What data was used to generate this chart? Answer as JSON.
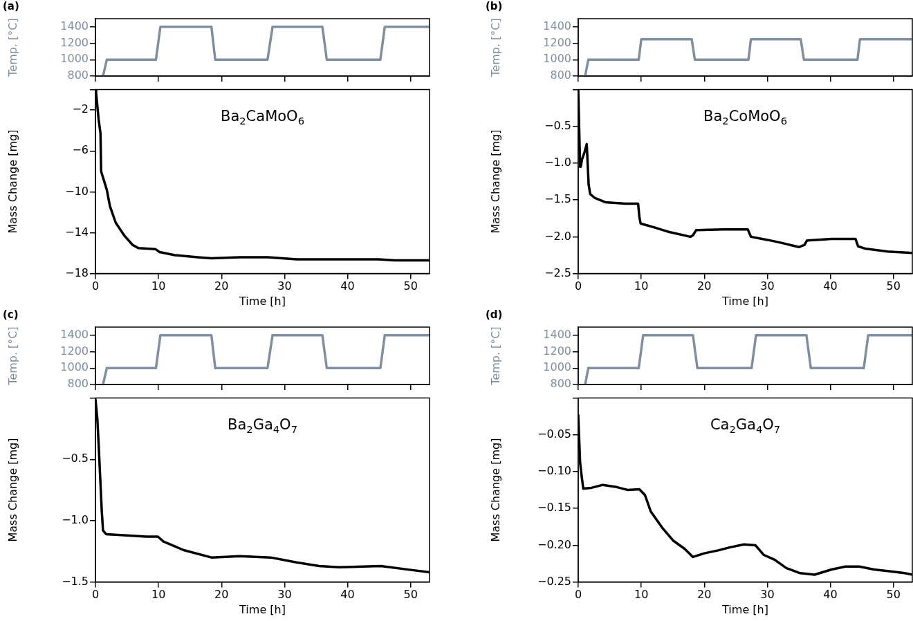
{
  "chart_data": [
    {
      "type": "line",
      "title": "(a)",
      "ylabel": "Temp. [°C]",
      "x": [
        1.2,
        1.8,
        9.6,
        10.3,
        18.4,
        19.0,
        27.3,
        28.1,
        36.0,
        36.7,
        45.2,
        45.9,
        53
      ],
      "series": [
        {
          "color": "#7f8fa1",
          "values": [
            800,
            1000,
            1000,
            1400,
            1400,
            1000,
            1000,
            1400,
            1400,
            1000,
            1000,
            1400,
            1400
          ]
        }
      ],
      "xlim": [
        0,
        53
      ],
      "ylim": [
        800,
        1500
      ],
      "xticks": [
        0,
        10,
        20,
        30,
        40,
        50
      ],
      "yticks": [
        800,
        1000,
        1200,
        1400
      ],
      "tick_labels": "y"
    },
    {
      "type": "line",
      "xlabel": "Time [h]",
      "ylabel": "Mass Change [mg]",
      "annotations": [
        "Ba$_{2}$CaMoO$_{6}$"
      ],
      "x": [
        0,
        0.1,
        0.5,
        0.8,
        0.9,
        1.4,
        1.8,
        2.3,
        3.2,
        4.6,
        5.9,
        6.8,
        9.5,
        10.2,
        12.6,
        16.2,
        18.4,
        22.9,
        27.4,
        31.9,
        34.1,
        38.6,
        44.9,
        47.5,
        53
      ],
      "series": [
        {
          "color": "#000000",
          "values": [
            0,
            -0.3,
            -2.9,
            -4.3,
            -8.0,
            -9.0,
            -9.8,
            -11.4,
            -13.0,
            -14.3,
            -15.2,
            -15.5,
            -15.6,
            -15.9,
            -16.2,
            -16.4,
            -16.5,
            -16.4,
            -16.4,
            -16.6,
            -16.6,
            -16.6,
            -16.6,
            -16.7,
            -16.7
          ]
        }
      ],
      "xlim": [
        0,
        53
      ],
      "ylim": [
        -18,
        0
      ],
      "xticks": [
        0,
        10,
        20,
        30,
        40,
        50
      ],
      "yticks": [
        {
          "value": 0,
          "label": null
        },
        {
          "value": -2,
          "label": "−2"
        },
        {
          "value": -6,
          "label": "−6"
        },
        {
          "value": -10,
          "label": "−10"
        },
        {
          "value": -14,
          "label": "−14"
        },
        {
          "value": -18,
          "label": "−18"
        }
      ]
    },
    {
      "type": "line",
      "title": "(b)",
      "ylabel": "Temp. [°C]",
      "x": [
        1.1,
        1.6,
        9.6,
        10.0,
        18.0,
        18.5,
        27.0,
        27.4,
        35.3,
        35.8,
        44.3,
        44.7,
        53
      ],
      "series": [
        {
          "color": "#7f8fa1",
          "values": [
            800,
            1000,
            1000,
            1250,
            1250,
            1000,
            1000,
            1250,
            1250,
            1000,
            1000,
            1250,
            1250
          ]
        }
      ],
      "xlim": [
        0,
        53
      ],
      "ylim": [
        800,
        1500
      ],
      "xticks": [
        0,
        10,
        20,
        30,
        40,
        50
      ],
      "yticks": [
        800,
        1000,
        1200,
        1400
      ],
      "tick_labels": "y"
    },
    {
      "type": "line",
      "xlabel": "Time [h]",
      "ylabel": "Mass Change [mg]",
      "annotations": [
        "Ba$_{2}$CoMoO$_{6}$"
      ],
      "x": [
        0,
        0.3,
        0.4,
        0.6,
        1.0,
        1.35,
        1.65,
        1.9,
        2.6,
        4.3,
        7.5,
        9.5,
        9.7,
        9.9,
        12,
        14.2,
        17.8,
        18.2,
        18.7,
        23.1,
        26.9,
        27.4,
        29.9,
        32.1,
        35,
        35.9,
        36.3,
        40.2,
        44,
        44.4,
        45.5,
        49.1,
        53
      ],
      "series": [
        {
          "color": "#000000",
          "values": [
            0,
            -1.05,
            -1.05,
            -0.95,
            -0.85,
            -0.74,
            -1.29,
            -1.42,
            -1.47,
            -1.53,
            -1.55,
            -1.55,
            -1.73,
            -1.82,
            -1.87,
            -1.93,
            -2.0,
            -1.98,
            -1.91,
            -1.9,
            -1.9,
            -2.0,
            -2.04,
            -2.08,
            -2.14,
            -2.11,
            -2.05,
            -2.03,
            -2.03,
            -2.13,
            -2.16,
            -2.2,
            -2.22
          ]
        }
      ],
      "xlim": [
        0,
        53
      ],
      "ylim": [
        -2.5,
        0
      ],
      "xticks": [
        0,
        10,
        20,
        30,
        40,
        50
      ],
      "yticks": [
        {
          "value": 0,
          "label": null
        },
        {
          "value": -0.5,
          "label": "−0.5"
        },
        {
          "value": -1,
          "label": "−1.0"
        },
        {
          "value": -1.5,
          "label": "−1.5"
        },
        {
          "value": -2,
          "label": "−2.0"
        },
        {
          "value": -2.5,
          "label": "−2.5"
        }
      ]
    },
    {
      "type": "line",
      "title": "(c)",
      "ylabel": "Temp. [°C]",
      "x": [
        1.2,
        1.8,
        9.6,
        10.3,
        18.4,
        19.0,
        27.3,
        28.1,
        36.0,
        36.7,
        45.2,
        45.9,
        53
      ],
      "series": [
        {
          "color": "#7f8fa1",
          "values": [
            800,
            1000,
            1000,
            1400,
            1400,
            1000,
            1000,
            1400,
            1400,
            1000,
            1000,
            1400,
            1400
          ]
        }
      ],
      "xlim": [
        0,
        53
      ],
      "ylim": [
        800,
        1500
      ],
      "xticks": [
        0,
        10,
        20,
        30,
        40,
        50
      ],
      "yticks": [
        800,
        1000,
        1200,
        1400
      ],
      "tick_labels": "y"
    },
    {
      "type": "line",
      "xlabel": "Time [h]",
      "ylabel": "Mass Change [mg]",
      "annotations": [
        "Ba$_{2}$Ga$_{4}$O$_{7}$"
      ],
      "x": [
        0,
        0.3,
        0.5,
        0.8,
        1.0,
        1.2,
        1.7,
        5,
        8.1,
        9.9,
        10.8,
        14,
        18.4,
        22.9,
        27.8,
        31.9,
        35.5,
        38.6,
        45.3,
        49.8,
        53
      ],
      "series": [
        {
          "color": "#000000",
          "values": [
            -0.01,
            -0.17,
            -0.37,
            -0.7,
            -0.92,
            -1.08,
            -1.11,
            -1.12,
            -1.13,
            -1.13,
            -1.17,
            -1.24,
            -1.3,
            -1.29,
            -1.3,
            -1.34,
            -1.37,
            -1.38,
            -1.37,
            -1.4,
            -1.42
          ]
        }
      ],
      "xlim": [
        0,
        53
      ],
      "ylim": [
        -1.5,
        0
      ],
      "xticks": [
        0,
        10,
        20,
        30,
        40,
        50
      ],
      "yticks": [
        {
          "value": 0,
          "label": null
        },
        {
          "value": -0.5,
          "label": "−0.5"
        },
        {
          "value": -1,
          "label": "−1.0"
        },
        {
          "value": -1.5,
          "label": "−1.5"
        }
      ]
    },
    {
      "type": "line",
      "title": "(d)",
      "ylabel": "Temp. [°C]",
      "x": [
        1.1,
        1.6,
        9.6,
        10.3,
        18.2,
        18.9,
        27.5,
        28.2,
        36.2,
        36.9,
        45.3,
        46.0,
        53
      ],
      "series": [
        {
          "color": "#7f8fa1",
          "values": [
            800,
            1000,
            1000,
            1400,
            1400,
            1000,
            1000,
            1400,
            1400,
            1000,
            1000,
            1400,
            1400
          ]
        }
      ],
      "xlim": [
        0,
        53
      ],
      "ylim": [
        800,
        1500
      ],
      "xticks": [
        0,
        10,
        20,
        30,
        40,
        50
      ],
      "yticks": [
        800,
        1000,
        1200,
        1400
      ],
      "tick_labels": "y"
    },
    {
      "type": "line",
      "xlabel": "Time [h]",
      "ylabel": "Mass Change [mg]",
      "annotations": [
        "Ca$_{2}$Ga$_{4}$O$_{7}$"
      ],
      "x": [
        0,
        0.3,
        0.5,
        0.8,
        2.1,
        3.9,
        6.1,
        7.9,
        9.7,
        10.6,
        11.5,
        13.3,
        15.1,
        16.9,
        18.2,
        20,
        22.2,
        24,
        26.3,
        28.1,
        29.4,
        31.2,
        33,
        35.2,
        37.5,
        40.2,
        42.4,
        44.6,
        46.9,
        49.1,
        51.8,
        53
      ],
      "series": [
        {
          "color": "#000000",
          "values": [
            -0.023,
            -0.088,
            -0.103,
            -0.123,
            -0.122,
            -0.118,
            -0.121,
            -0.125,
            -0.124,
            -0.132,
            -0.154,
            -0.176,
            -0.194,
            -0.205,
            -0.216,
            -0.211,
            -0.207,
            -0.203,
            -0.199,
            -0.2,
            -0.213,
            -0.22,
            -0.231,
            -0.238,
            -0.24,
            -0.233,
            -0.229,
            -0.229,
            -0.233,
            -0.235,
            -0.238,
            -0.24
          ]
        }
      ],
      "xlim": [
        0,
        53
      ],
      "ylim": [
        -0.25,
        0
      ],
      "xticks": [
        0,
        10,
        20,
        30,
        40,
        50
      ],
      "yticks": [
        {
          "value": 0,
          "label": null
        },
        {
          "value": -0.05,
          "label": "−0.05"
        },
        {
          "value": -0.1,
          "label": "−0.10"
        },
        {
          "value": -0.15,
          "label": "−0.15"
        },
        {
          "value": -0.2,
          "label": "−0.20"
        },
        {
          "value": -0.25,
          "label": "−0.25"
        }
      ]
    }
  ]
}
